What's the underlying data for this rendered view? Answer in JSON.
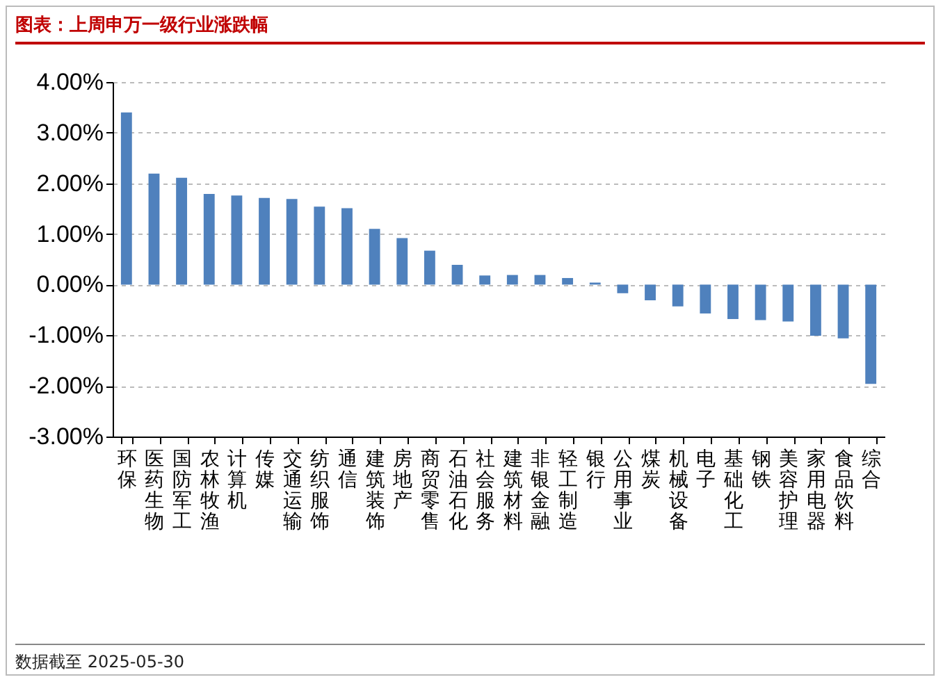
{
  "chart_data": {
    "type": "bar",
    "title": "图表：上周申万一级行业涨跌幅",
    "categories": [
      "环保",
      "医药生物",
      "国防军工",
      "农林牧渔",
      "计算机",
      "传媒",
      "交通运输",
      "纺织服饰",
      "通信",
      "建筑装饰",
      "房地产",
      "商贸零售",
      "石油石化",
      "社会服务",
      "建筑材料",
      "非银金融",
      "轻工制造",
      "银行",
      "公用事业",
      "煤炭",
      "机械设备",
      "电子",
      "基础化工",
      "钢铁",
      "美容护理",
      "家用电器",
      "食品饮料",
      "综合"
    ],
    "values": [
      3.4,
      2.19,
      2.11,
      1.79,
      1.76,
      1.71,
      1.69,
      1.54,
      1.51,
      1.1,
      0.92,
      0.67,
      0.39,
      0.18,
      0.19,
      0.19,
      0.13,
      0.04,
      -0.17,
      -0.31,
      -0.43,
      -0.57,
      -0.68,
      -0.7,
      -0.73,
      -1.01,
      -1.06,
      -1.96
    ],
    "color": "#4f81bd",
    "ylim": [
      -3,
      4
    ],
    "yticks": [
      {
        "value": 4,
        "label": "4.00%"
      },
      {
        "value": 3,
        "label": "3.00%"
      },
      {
        "value": 2,
        "label": "2.00%"
      },
      {
        "value": 1,
        "label": "1.00%"
      },
      {
        "value": 0,
        "label": "0.00%"
      },
      {
        "value": -1,
        "label": "-1.00%"
      },
      {
        "value": -2,
        "label": "-2.00%"
      },
      {
        "value": -3,
        "label": "-3.00%"
      }
    ],
    "grid": "y",
    "annotations": [
      "数据截至 2025-05-30"
    ]
  }
}
